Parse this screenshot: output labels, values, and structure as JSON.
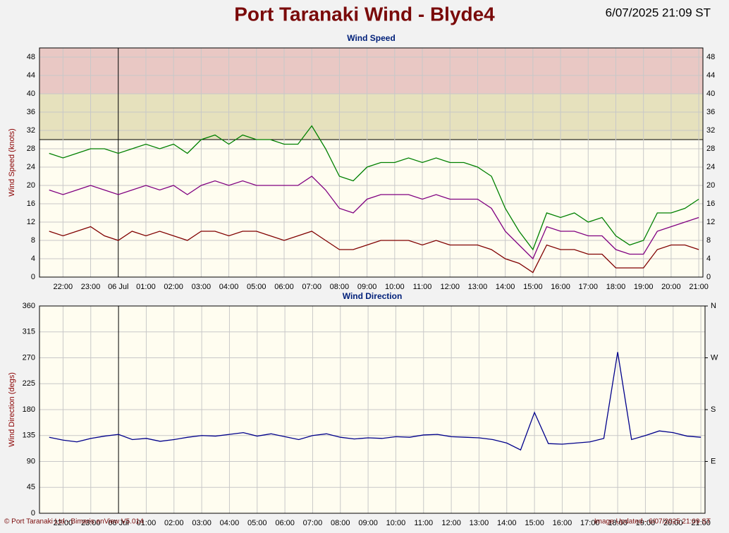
{
  "header": {
    "title": "Port Taranaki Wind - Blyde4",
    "timestamp": "6/07/2025 21:09 ST"
  },
  "footer": {
    "left": "© Port Taranaki Ltd - Bimaris enView V5.014",
    "right": "Image Updated - 6/07/2025 21:09 ST"
  },
  "chart_data": [
    {
      "type": "line",
      "title": "Wind Speed",
      "y_label": "Wind Speed (knots)",
      "x": [
        "21:30",
        "22:00",
        "22:30",
        "23:00",
        "23:30",
        "00:00",
        "00:30",
        "01:00",
        "01:30",
        "02:00",
        "02:30",
        "03:00",
        "03:30",
        "04:00",
        "04:30",
        "05:00",
        "05:30",
        "06:00",
        "06:30",
        "07:00",
        "07:30",
        "08:00",
        "08:30",
        "09:00",
        "09:30",
        "10:00",
        "10:30",
        "11:00",
        "11:30",
        "12:00",
        "12:30",
        "13:00",
        "13:30",
        "14:00",
        "14:30",
        "15:00",
        "15:30",
        "16:00",
        "16:30",
        "17:00",
        "17:30",
        "18:00",
        "18:30",
        "19:00",
        "19:30",
        "20:00",
        "20:30",
        "21:00"
      ],
      "series": [
        {
          "color": "#008000",
          "values": [
            27,
            26,
            27,
            28,
            28,
            27,
            28,
            29,
            28,
            29,
            27,
            30,
            31,
            29,
            31,
            30,
            30,
            29,
            29,
            33,
            28,
            22,
            21,
            24,
            25,
            25,
            26,
            25,
            26,
            25,
            25,
            24,
            22,
            15,
            10,
            6,
            14,
            13,
            14,
            12,
            13,
            9,
            7,
            8,
            14,
            14,
            15,
            17
          ]
        },
        {
          "color": "#800080",
          "values": [
            19,
            18,
            19,
            20,
            19,
            18,
            19,
            20,
            19,
            20,
            18,
            20,
            21,
            20,
            21,
            20,
            20,
            20,
            20,
            22,
            19,
            15,
            14,
            17,
            18,
            18,
            18,
            17,
            18,
            17,
            17,
            17,
            15,
            10,
            7,
            4,
            11,
            10,
            10,
            9,
            9,
            6,
            5,
            5,
            10,
            11,
            12,
            13
          ]
        },
        {
          "color": "#800000",
          "values": [
            10,
            9,
            10,
            11,
            9,
            8,
            10,
            9,
            10,
            9,
            8,
            10,
            10,
            9,
            10,
            10,
            9,
            8,
            9,
            10,
            8,
            6,
            6,
            7,
            8,
            8,
            8,
            7,
            8,
            7,
            7,
            7,
            6,
            4,
            3,
            1,
            7,
            6,
            6,
            5,
            5,
            2,
            2,
            2,
            6,
            7,
            7,
            6
          ]
        }
      ],
      "xlim": [
        "21:09",
        "21:09"
      ],
      "xticks": [
        "22:00",
        "23:00",
        {
          "value": "00:00",
          "label": "06 Jul"
        },
        "01:00",
        "02:00",
        "03:00",
        "04:00",
        "05:00",
        "06:00",
        "07:00",
        "08:00",
        "09:00",
        "10:00",
        "11:00",
        "12:00",
        "13:00",
        "14:00",
        "15:00",
        "16:00",
        "17:00",
        "18:00",
        "19:00",
        "20:00",
        "21:00"
      ],
      "ylim": [
        0,
        50
      ],
      "yticks": [
        0,
        4,
        8,
        12,
        16,
        20,
        24,
        28,
        32,
        36,
        40,
        44,
        48
      ],
      "bands": [
        {
          "from": 30,
          "to": 40,
          "color": "#e6e1bd"
        },
        {
          "from": 40,
          "to": 50,
          "color": "#e9c8c4"
        }
      ],
      "grid": true
    },
    {
      "type": "line",
      "title": "Wind Direction",
      "y_label": "Wind Direction (degs)",
      "x": [
        "21:30",
        "22:00",
        "22:30",
        "23:00",
        "23:30",
        "00:00",
        "00:30",
        "01:00",
        "01:30",
        "02:00",
        "02:30",
        "03:00",
        "03:30",
        "04:00",
        "04:30",
        "05:00",
        "05:30",
        "06:00",
        "06:30",
        "07:00",
        "07:30",
        "08:00",
        "08:30",
        "09:00",
        "09:30",
        "10:00",
        "10:30",
        "11:00",
        "11:30",
        "12:00",
        "12:30",
        "13:00",
        "13:30",
        "14:00",
        "14:30",
        "15:00",
        "15:30",
        "16:00",
        "16:30",
        "17:00",
        "17:30",
        "18:00",
        "18:30",
        "19:00",
        "19:30",
        "20:00",
        "20:30",
        "21:00"
      ],
      "series": [
        {
          "color": "#00008b",
          "values": [
            132,
            127,
            124,
            130,
            134,
            137,
            128,
            130,
            125,
            128,
            132,
            135,
            134,
            137,
            140,
            134,
            138,
            133,
            128,
            135,
            138,
            132,
            129,
            131,
            130,
            133,
            132,
            136,
            137,
            133,
            132,
            131,
            128,
            122,
            110,
            175,
            121,
            120,
            122,
            124,
            130,
            280,
            128,
            135,
            143,
            140,
            134,
            132
          ]
        }
      ],
      "xlim": [
        "21:09",
        "21:09"
      ],
      "xticks": [
        "22:00",
        "23:00",
        {
          "value": "00:00",
          "label": "06 Jul"
        },
        "01:00",
        "02:00",
        "03:00",
        "04:00",
        "05:00",
        "06:00",
        "07:00",
        "08:00",
        "09:00",
        "10:00",
        "11:00",
        "12:00",
        "13:00",
        "14:00",
        "15:00",
        "16:00",
        "17:00",
        "18:00",
        "19:00",
        "20:00",
        "21:00"
      ],
      "ylim": [
        0,
        360
      ],
      "yticks": [
        0,
        45,
        90,
        135,
        180,
        225,
        270,
        315,
        360
      ],
      "y2lim": [
        0,
        360
      ],
      "y2ticks": [
        {
          "value": 90,
          "label": "E"
        },
        {
          "value": 180,
          "label": "S"
        },
        {
          "value": 270,
          "label": "W"
        },
        {
          "value": 360,
          "label": "N"
        }
      ],
      "grid": true
    }
  ]
}
